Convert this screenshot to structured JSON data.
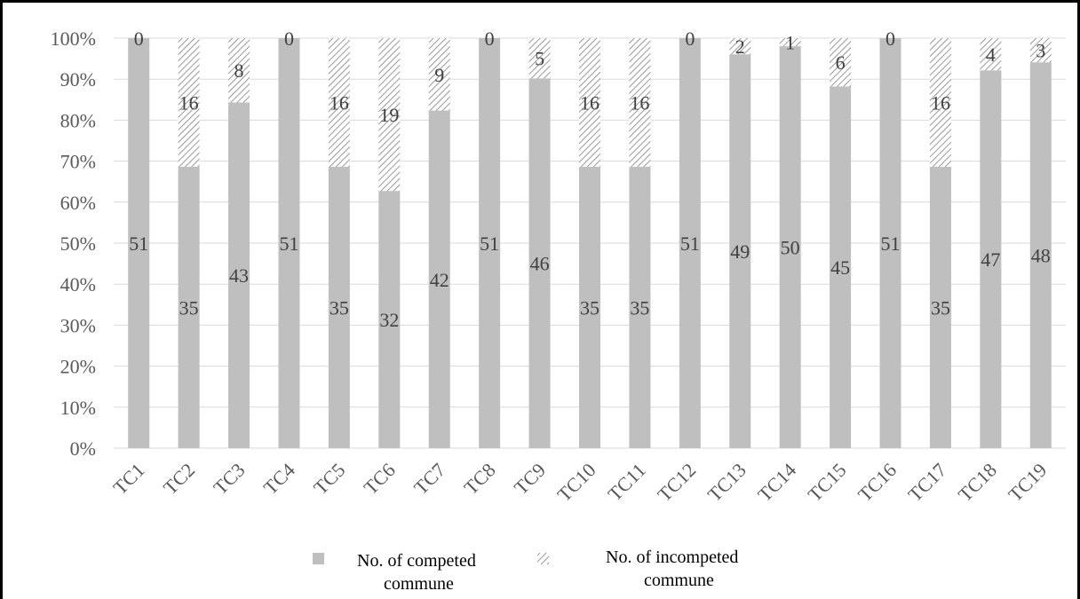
{
  "chart_data": {
    "type": "bar",
    "stacked": "percent",
    "categories": [
      "TC1",
      "TC2",
      "TC3",
      "TC4",
      "TC5",
      "TC6",
      "TC7",
      "TC8",
      "TC9",
      "TC10",
      "TC11",
      "TC12",
      "TC13",
      "TC14",
      "TC15",
      "TC16",
      "TC17",
      "TC18",
      "TC19"
    ],
    "series": [
      {
        "name": "No. of competed commune",
        "values": [
          51,
          35,
          43,
          51,
          35,
          32,
          42,
          51,
          46,
          35,
          35,
          51,
          49,
          50,
          45,
          51,
          35,
          47,
          48
        ]
      },
      {
        "name": "No. of incompeted commune",
        "values": [
          0,
          16,
          8,
          0,
          16,
          19,
          9,
          0,
          5,
          16,
          16,
          0,
          2,
          1,
          6,
          0,
          16,
          4,
          3
        ]
      }
    ],
    "yticks": [
      "0%",
      "10%",
      "20%",
      "30%",
      "40%",
      "50%",
      "60%",
      "70%",
      "80%",
      "90%",
      "100%"
    ],
    "ylim": [
      0,
      100
    ],
    "grid": true,
    "legend_position": "bottom",
    "colors": {
      "competed": "#bfbfbf",
      "incompeted_hatch": "#7f7f7f",
      "grid": "#d9d9d9",
      "frame": "#000000"
    }
  },
  "legend": {
    "competed": {
      "line1": "No. of competed",
      "line2": "commune"
    },
    "incompeted": {
      "line1": "No. of incompeted",
      "line2": "commune"
    }
  }
}
